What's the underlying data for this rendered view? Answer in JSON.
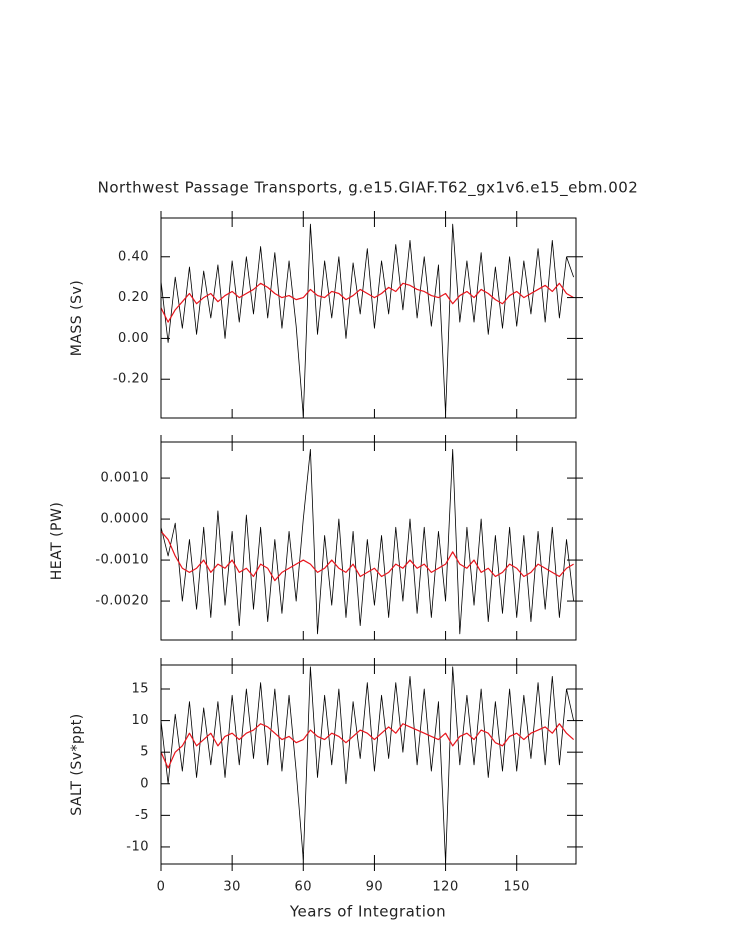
{
  "chart_data": [
    {
      "type": "line",
      "title": "Northwest Passage Transports, g.e15.GIAF.T62_gx1v6.e15_ebm.002",
      "y_label": "MASS (Sv)",
      "x": [
        0,
        3,
        6,
        9,
        12,
        15,
        18,
        21,
        24,
        27,
        30,
        33,
        36,
        39,
        42,
        45,
        48,
        51,
        54,
        57,
        60,
        63,
        66,
        69,
        72,
        75,
        78,
        81,
        84,
        87,
        90,
        93,
        96,
        99,
        102,
        105,
        108,
        111,
        114,
        117,
        120,
        123,
        126,
        129,
        132,
        135,
        138,
        141,
        144,
        147,
        150,
        153,
        156,
        159,
        162,
        165,
        168,
        171,
        174
      ],
      "series": [
        {
          "color": "#000000",
          "values": [
            0.28,
            -0.02,
            0.3,
            0.05,
            0.35,
            0.02,
            0.33,
            0.1,
            0.36,
            0.0,
            0.38,
            0.08,
            0.4,
            0.12,
            0.45,
            0.1,
            0.42,
            0.05,
            0.38,
            0.06,
            -0.38,
            0.56,
            0.02,
            0.38,
            0.1,
            0.4,
            0.0,
            0.37,
            0.12,
            0.44,
            0.05,
            0.38,
            0.12,
            0.46,
            0.14,
            0.48,
            0.1,
            0.4,
            0.06,
            0.36,
            -0.37,
            0.56,
            0.08,
            0.38,
            0.08,
            0.42,
            0.02,
            0.35,
            0.05,
            0.4,
            0.06,
            0.38,
            0.12,
            0.44,
            0.08,
            0.48,
            0.1,
            0.4,
            0.3
          ]
        },
        {
          "color": "#e8141c",
          "values": [
            0.15,
            0.08,
            0.14,
            0.18,
            0.22,
            0.17,
            0.2,
            0.22,
            0.18,
            0.21,
            0.23,
            0.2,
            0.22,
            0.24,
            0.27,
            0.25,
            0.22,
            0.2,
            0.21,
            0.19,
            0.2,
            0.24,
            0.21,
            0.2,
            0.23,
            0.22,
            0.19,
            0.21,
            0.24,
            0.22,
            0.2,
            0.22,
            0.25,
            0.23,
            0.27,
            0.26,
            0.24,
            0.23,
            0.21,
            0.2,
            0.22,
            0.17,
            0.21,
            0.23,
            0.2,
            0.24,
            0.22,
            0.19,
            0.17,
            0.21,
            0.23,
            0.2,
            0.22,
            0.24,
            0.26,
            0.23,
            0.27,
            0.22,
            0.2
          ]
        }
      ],
      "xlim": [
        0,
        175
      ],
      "xticks": [
        0,
        30,
        60,
        90,
        120,
        150
      ],
      "ylim": [
        -0.39,
        0.59
      ],
      "yticks": [
        {
          "value": 0.4,
          "label": "0.40"
        },
        {
          "value": 0.2,
          "label": "0.20"
        },
        {
          "value": 0,
          "label": "0.00"
        },
        {
          "value": -0.2,
          "label": "-0.20"
        }
      ]
    },
    {
      "type": "line",
      "y_label": "HEAT (PW)",
      "x": [
        0,
        3,
        6,
        9,
        12,
        15,
        18,
        21,
        24,
        27,
        30,
        33,
        36,
        39,
        42,
        45,
        48,
        51,
        54,
        57,
        60,
        63,
        66,
        69,
        72,
        75,
        78,
        81,
        84,
        87,
        90,
        93,
        96,
        99,
        102,
        105,
        108,
        111,
        114,
        117,
        120,
        123,
        126,
        129,
        132,
        135,
        138,
        141,
        144,
        147,
        150,
        153,
        156,
        159,
        162,
        165,
        168,
        171,
        174
      ],
      "series": [
        {
          "color": "#000000",
          "values": [
            -0.0002,
            -0.0009,
            -0.0001,
            -0.002,
            -0.0005,
            -0.0022,
            -0.0002,
            -0.0024,
            0.0002,
            -0.0021,
            -0.0003,
            -0.0026,
            0.0001,
            -0.0022,
            -0.0002,
            -0.0025,
            -0.0005,
            -0.0023,
            -0.0003,
            -0.002,
            0.0,
            0.0017,
            -0.0028,
            -0.0004,
            -0.0021,
            0.0,
            -0.0024,
            -0.0003,
            -0.0026,
            -0.0005,
            -0.0021,
            -0.0004,
            -0.0024,
            -0.0002,
            -0.002,
            0.0,
            -0.0023,
            -0.0002,
            -0.0024,
            -0.0003,
            -0.002,
            0.0017,
            -0.0028,
            -0.0002,
            -0.0021,
            0.0,
            -0.0025,
            -0.0004,
            -0.0023,
            -0.0002,
            -0.0024,
            -0.0004,
            -0.0025,
            -0.0003,
            -0.0022,
            -0.0002,
            -0.0024,
            -0.0005,
            -0.002
          ]
        },
        {
          "color": "#e8141c",
          "values": [
            -0.0003,
            -0.0005,
            -0.0009,
            -0.0012,
            -0.0013,
            -0.0012,
            -0.001,
            -0.0013,
            -0.0011,
            -0.0012,
            -0.001,
            -0.0013,
            -0.0012,
            -0.0014,
            -0.0011,
            -0.0012,
            -0.0015,
            -0.0013,
            -0.0012,
            -0.0011,
            -0.001,
            -0.0011,
            -0.0013,
            -0.0012,
            -0.001,
            -0.0012,
            -0.0013,
            -0.0011,
            -0.0014,
            -0.0013,
            -0.0012,
            -0.0014,
            -0.0013,
            -0.0011,
            -0.0012,
            -0.001,
            -0.0012,
            -0.0011,
            -0.0013,
            -0.0012,
            -0.0011,
            -0.0008,
            -0.0011,
            -0.0012,
            -0.001,
            -0.0013,
            -0.0012,
            -0.0014,
            -0.0013,
            -0.0011,
            -0.0012,
            -0.0014,
            -0.0013,
            -0.0011,
            -0.0012,
            -0.0013,
            -0.0014,
            -0.0012,
            -0.0011
          ]
        }
      ],
      "xlim": [
        0,
        175
      ],
      "xticks": [
        0,
        30,
        60,
        90,
        120,
        150
      ],
      "ylim": [
        -0.00295,
        0.00188
      ],
      "yticks": [
        {
          "value": 0.001,
          "label": "0.0010"
        },
        {
          "value": 0,
          "label": "0.0000"
        },
        {
          "value": -0.001,
          "label": "-0.0010"
        },
        {
          "value": -0.002,
          "label": "-0.0020"
        }
      ]
    },
    {
      "type": "line",
      "y_label": "SALT (Sv*ppt)",
      "x_label": "Years of Integration",
      "x": [
        0,
        3,
        6,
        9,
        12,
        15,
        18,
        21,
        24,
        27,
        30,
        33,
        36,
        39,
        42,
        45,
        48,
        51,
        54,
        57,
        60,
        63,
        66,
        69,
        72,
        75,
        78,
        81,
        84,
        87,
        90,
        93,
        96,
        99,
        102,
        105,
        108,
        111,
        114,
        117,
        120,
        123,
        126,
        129,
        132,
        135,
        138,
        141,
        144,
        147,
        150,
        153,
        156,
        159,
        162,
        165,
        168,
        171,
        174
      ],
      "series": [
        {
          "color": "#000000",
          "values": [
            10,
            0,
            11,
            2,
            13,
            1,
            12,
            3,
            13,
            1,
            14,
            3,
            15,
            4,
            16,
            3,
            15,
            2,
            14,
            2,
            -12,
            18.5,
            1,
            14,
            3,
            15,
            0,
            13,
            4,
            16,
            2,
            14,
            4,
            16,
            5,
            17,
            3,
            15,
            2,
            13,
            -12.5,
            18.5,
            3,
            14,
            3,
            15,
            1,
            13,
            2,
            15,
            2,
            14,
            4,
            16,
            3,
            17,
            3,
            15,
            10
          ]
        },
        {
          "color": "#e8141c",
          "values": [
            5,
            2.5,
            5,
            6,
            8,
            6,
            7,
            8,
            6,
            7.5,
            8,
            7,
            8,
            8.5,
            9.5,
            9,
            8,
            7,
            7.5,
            6.5,
            7,
            8.5,
            7.5,
            7,
            8,
            7.5,
            6.5,
            7.5,
            8.5,
            8,
            7,
            8,
            9,
            8,
            9.5,
            9,
            8.5,
            8,
            7.5,
            7,
            8,
            6,
            7.5,
            8,
            7,
            8.5,
            8,
            6.5,
            6,
            7.5,
            8,
            7,
            8,
            8.5,
            9,
            8,
            9.5,
            8,
            7
          ]
        }
      ],
      "xlim": [
        0,
        175
      ],
      "xticks": [
        0,
        30,
        60,
        90,
        120,
        150
      ],
      "ylim": [
        -12.7,
        18.8
      ],
      "yticks": [
        15,
        10,
        5,
        0,
        -5,
        -10
      ]
    }
  ]
}
